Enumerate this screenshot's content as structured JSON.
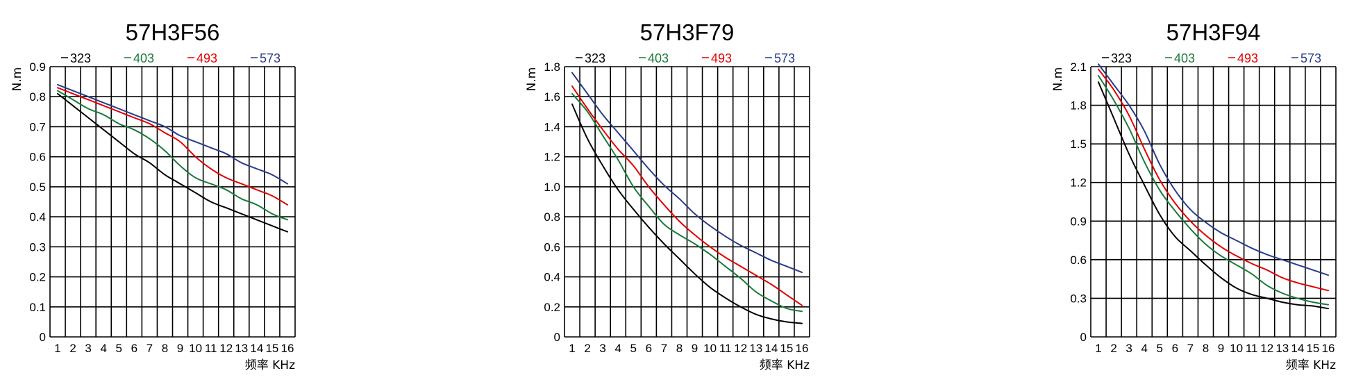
{
  "chart_data": [
    {
      "type": "line",
      "title": "57H3F56",
      "ylabel": "N.m",
      "xlabel": "频率 KHz",
      "x": [
        1,
        2,
        3,
        4,
        5,
        6,
        7,
        8,
        9,
        10,
        11,
        12,
        13,
        14,
        15,
        16
      ],
      "xlim": [
        1,
        16
      ],
      "ylim": [
        0,
        0.9
      ],
      "yticks": [
        "0",
        "0.1",
        "0.2",
        "0.3",
        "0.4",
        "0.5",
        "0.6",
        "0.7",
        "0.8",
        "0.9"
      ],
      "grid": true,
      "legend": "top",
      "series": [
        {
          "name": "323",
          "color": "#000000",
          "values": [
            0.81,
            0.77,
            0.73,
            0.69,
            0.65,
            0.61,
            0.58,
            0.54,
            0.51,
            0.48,
            0.45,
            0.43,
            0.41,
            0.39,
            0.37,
            0.35
          ]
        },
        {
          "name": "403",
          "color": "#1a7a3a",
          "values": [
            0.82,
            0.79,
            0.76,
            0.74,
            0.71,
            0.69,
            0.66,
            0.62,
            0.57,
            0.53,
            0.51,
            0.49,
            0.46,
            0.44,
            0.41,
            0.39
          ]
        },
        {
          "name": "493",
          "color": "#e00000",
          "values": [
            0.83,
            0.81,
            0.79,
            0.77,
            0.75,
            0.73,
            0.71,
            0.68,
            0.65,
            0.6,
            0.56,
            0.53,
            0.51,
            0.49,
            0.47,
            0.44
          ]
        },
        {
          "name": "573",
          "color": "#2a3a8a",
          "values": [
            0.84,
            0.82,
            0.8,
            0.78,
            0.76,
            0.74,
            0.72,
            0.7,
            0.67,
            0.65,
            0.63,
            0.61,
            0.58,
            0.56,
            0.54,
            0.51
          ]
        }
      ]
    },
    {
      "type": "line",
      "title": "57H3F79",
      "ylabel": "N.m",
      "xlabel": "频率 KHz",
      "x": [
        1,
        2,
        3,
        4,
        5,
        6,
        7,
        8,
        9,
        10,
        11,
        12,
        13,
        14,
        15,
        16
      ],
      "xlim": [
        1,
        16
      ],
      "ylim": [
        0,
        1.8
      ],
      "yticks": [
        "0",
        "0.2",
        "0.4",
        "0.6",
        "0.8",
        "1.0",
        "1.2",
        "1.4",
        "1.6",
        "1.8"
      ],
      "grid": true,
      "legend": "top",
      "series": [
        {
          "name": "323",
          "color": "#000000",
          "values": [
            1.55,
            1.32,
            1.14,
            0.98,
            0.85,
            0.73,
            0.62,
            0.52,
            0.42,
            0.33,
            0.26,
            0.2,
            0.15,
            0.12,
            0.1,
            0.09
          ]
        },
        {
          "name": "403",
          "color": "#1a7a3a",
          "values": [
            1.62,
            1.5,
            1.34,
            1.18,
            1.0,
            0.87,
            0.75,
            0.68,
            0.62,
            0.55,
            0.47,
            0.39,
            0.3,
            0.24,
            0.19,
            0.17
          ]
        },
        {
          "name": "493",
          "color": "#e00000",
          "values": [
            1.67,
            1.52,
            1.38,
            1.25,
            1.14,
            1.0,
            0.88,
            0.77,
            0.68,
            0.6,
            0.53,
            0.47,
            0.41,
            0.35,
            0.28,
            0.21
          ]
        },
        {
          "name": "573",
          "color": "#2a3a8a",
          "values": [
            1.76,
            1.62,
            1.48,
            1.36,
            1.24,
            1.12,
            1.01,
            0.92,
            0.82,
            0.74,
            0.67,
            0.61,
            0.56,
            0.51,
            0.47,
            0.43
          ]
        }
      ]
    },
    {
      "type": "line",
      "title": "57H3F94",
      "ylabel": "N.m",
      "xlabel": "频率 KHz",
      "x": [
        1,
        2,
        3,
        4,
        5,
        6,
        7,
        8,
        9,
        10,
        11,
        12,
        13,
        14,
        15,
        16
      ],
      "xlim": [
        1,
        16
      ],
      "ylim": [
        0,
        2.1
      ],
      "yticks": [
        "0",
        "0.3",
        "0.6",
        "0.9",
        "1.2",
        "1.5",
        "1.8",
        "2.1"
      ],
      "grid": true,
      "legend": "top",
      "series": [
        {
          "name": "323",
          "color": "#000000",
          "values": [
            1.98,
            1.7,
            1.42,
            1.18,
            0.95,
            0.78,
            0.67,
            0.56,
            0.46,
            0.38,
            0.33,
            0.3,
            0.27,
            0.25,
            0.24,
            0.22
          ]
        },
        {
          "name": "403",
          "color": "#1a7a3a",
          "values": [
            2.03,
            1.84,
            1.62,
            1.36,
            1.14,
            0.98,
            0.84,
            0.72,
            0.63,
            0.56,
            0.49,
            0.4,
            0.34,
            0.3,
            0.27,
            0.25
          ]
        },
        {
          "name": "493",
          "color": "#e00000",
          "values": [
            2.08,
            1.92,
            1.72,
            1.46,
            1.22,
            1.04,
            0.9,
            0.79,
            0.7,
            0.63,
            0.57,
            0.52,
            0.46,
            0.42,
            0.39,
            0.36
          ]
        },
        {
          "name": "573",
          "color": "#2a3a8a",
          "values": [
            2.12,
            1.96,
            1.8,
            1.6,
            1.34,
            1.14,
            0.99,
            0.89,
            0.81,
            0.75,
            0.69,
            0.64,
            0.6,
            0.56,
            0.52,
            0.48
          ]
        }
      ]
    }
  ]
}
